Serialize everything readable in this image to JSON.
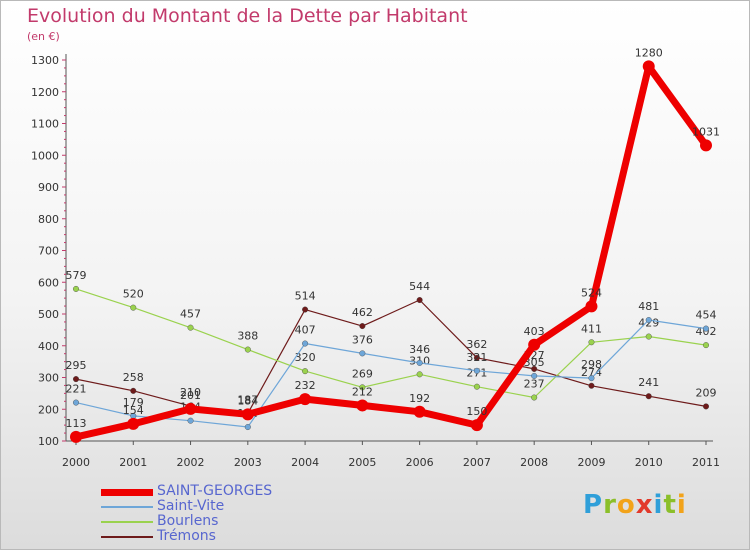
{
  "header": {
    "title": "Evolution du Montant de la Dette par Habitant",
    "subtitle": "(en €)"
  },
  "logo": {
    "letters": [
      "P",
      "r",
      "o",
      "x",
      "i",
      "t",
      "i"
    ],
    "colors": [
      "#2f9fd9",
      "#8bbf2a",
      "#f2a31a",
      "#e2392b",
      "#2f9fd9",
      "#8bbf2a",
      "#f2a31a"
    ]
  },
  "chart_data": {
    "type": "line",
    "title": "Evolution du Montant de la Dette par Habitant",
    "subtitle": "(en €)",
    "x": [
      "2000",
      "2001",
      "2002",
      "2003",
      "2004",
      "2005",
      "2006",
      "2007",
      "2008",
      "2009",
      "2010",
      "2011"
    ],
    "ylim": [
      100,
      1300
    ],
    "yticks": [
      100,
      200,
      300,
      400,
      500,
      600,
      700,
      800,
      900,
      1000,
      1100,
      1200,
      1300
    ],
    "grid": false,
    "legend_position": "bottom-left",
    "series": [
      {
        "name": "Trémons",
        "color": "#6e1b1b",
        "width": 1.2,
        "marker": 2.8,
        "values": [
          295,
          258,
          210,
          187,
          514,
          462,
          544,
          362,
          327,
          274,
          241,
          209
        ]
      },
      {
        "name": "Bourlens",
        "color": "#9ad24e",
        "width": 1.2,
        "marker": 2.8,
        "values": [
          579,
          520,
          457,
          388,
          320,
          269,
          310,
          271,
          237,
          411,
          429,
          402
        ]
      },
      {
        "name": "Saint-Vite",
        "color": "#6ea6d8",
        "width": 1.2,
        "marker": 2.8,
        "values": [
          221,
          179,
          164,
          144,
          407,
          376,
          346,
          321,
          305,
          298,
          481,
          454
        ]
      },
      {
        "name": "SAINT-GEORGES",
        "color": "#ee0000",
        "width": 7,
        "marker": 6,
        "values": [
          113,
          154,
          201,
          184,
          232,
          212,
          192,
          150,
          403,
          524,
          1280,
          1031
        ]
      }
    ],
    "legend": [
      {
        "name": "SAINT-GEORGES",
        "color": "#ee0000",
        "thickness": 7
      },
      {
        "name": "Saint-Vite",
        "color": "#6ea6d8",
        "thickness": 2
      },
      {
        "name": "Bourlens",
        "color": "#9ad24e",
        "thickness": 2
      },
      {
        "name": "Trémons",
        "color": "#6e1b1b",
        "thickness": 2
      }
    ]
  }
}
